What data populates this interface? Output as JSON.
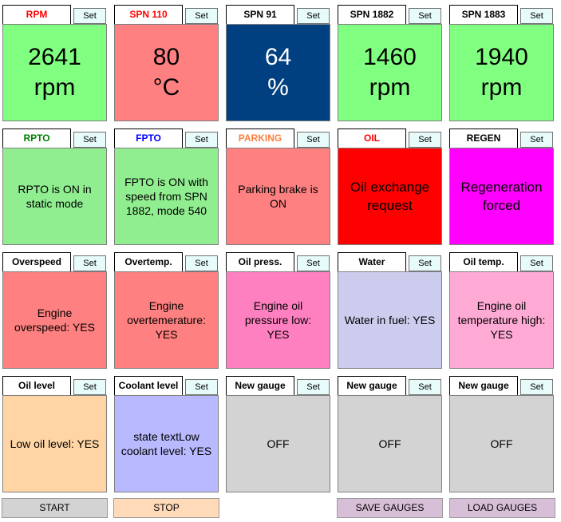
{
  "gauges": [
    {
      "title": "RPM",
      "title_color": "#ff0000",
      "set_label": "Set",
      "value": "2641\nrpm",
      "bg": "#80ff80",
      "fg": "#000000",
      "kind": "numeric"
    },
    {
      "title": "SPN 110",
      "title_color": "#ff0000",
      "set_label": "Set",
      "value": "80\n°C",
      "bg": "#ff8080",
      "fg": "#000000",
      "kind": "numeric"
    },
    {
      "title": "SPN 91",
      "title_color": "#000000",
      "set_label": "Set",
      "value": "64\n%",
      "bg": "#004080",
      "fg": "#ffffff",
      "kind": "numeric"
    },
    {
      "title": "SPN 1882",
      "title_color": "#000000",
      "set_label": "Set",
      "value": "1460\nrpm",
      "bg": "#80ff80",
      "fg": "#000000",
      "kind": "numeric"
    },
    {
      "title": "SPN 1883",
      "title_color": "#000000",
      "set_label": "Set",
      "value": "1940\nrpm",
      "bg": "#80ff80",
      "fg": "#000000",
      "kind": "numeric"
    },
    {
      "title": "RPTO",
      "title_color": "#008000",
      "set_label": "Set",
      "value": "RPTO is ON in\nstatic mode",
      "bg": "#90ee90",
      "fg": "#000000",
      "kind": "text"
    },
    {
      "title": "FPTO",
      "title_color": "#0000ff",
      "set_label": "Set",
      "value": "FPTO is ON with\nspeed from SPN\n1882, mode 540",
      "bg": "#90ee90",
      "fg": "#000000",
      "kind": "text"
    },
    {
      "title": "PARKING",
      "title_color": "#ff8040",
      "set_label": "Set",
      "value": "Parking brake is\nON",
      "bg": "#ff8080",
      "fg": "#000000",
      "kind": "text"
    },
    {
      "title": "OIL",
      "title_color": "#ff0000",
      "set_label": "Set",
      "value": "Oil exchange\nrequest",
      "bg": "#ff0000",
      "fg": "#000000",
      "kind": "big"
    },
    {
      "title": "REGEN",
      "title_color": "#000000",
      "set_label": "Set",
      "value": "Regeneration\nforced",
      "bg": "#ff00ff",
      "fg": "#000000",
      "kind": "big"
    },
    {
      "title": "Overspeed",
      "title_color": "#000000",
      "set_label": "Set",
      "value": "Engine\noverspeed: YES",
      "bg": "#ff8080",
      "fg": "#000000",
      "kind": "text"
    },
    {
      "title": "Overtemp.",
      "title_color": "#000000",
      "set_label": "Set",
      "value": "Engine\novertemerature:\nYES",
      "bg": "#ff8080",
      "fg": "#000000",
      "kind": "text"
    },
    {
      "title": "Oil press.",
      "title_color": "#000000",
      "set_label": "Set",
      "value": "Engine oil\npressure low:\nYES",
      "bg": "#ff80c0",
      "fg": "#000000",
      "kind": "text"
    },
    {
      "title": "Water",
      "title_color": "#000000",
      "set_label": "Set",
      "value": "Water in fuel: YES",
      "bg": "#ccccee",
      "fg": "#000000",
      "kind": "text"
    },
    {
      "title": "Oil temp.",
      "title_color": "#000000",
      "set_label": "Set",
      "value": "Engine oil\ntemperature high:\nYES",
      "bg": "#ffaad5",
      "fg": "#000000",
      "kind": "text"
    },
    {
      "title": "Oil level",
      "title_color": "#000000",
      "set_label": "Set",
      "value": "Low oil level: YES",
      "bg": "#ffd5a5",
      "fg": "#000000",
      "kind": "text"
    },
    {
      "title": "Coolant level",
      "title_color": "#000000",
      "set_label": "Set",
      "value": "state textLow\ncoolant level: YES",
      "bg": "#b9b9ff",
      "fg": "#000000",
      "kind": "text"
    },
    {
      "title": "New gauge",
      "title_color": "#000000",
      "set_label": "Set",
      "value": "OFF",
      "bg": "#d3d3d3",
      "fg": "#000000",
      "kind": "text"
    },
    {
      "title": "New gauge",
      "title_color": "#000000",
      "set_label": "Set",
      "value": "OFF",
      "bg": "#d3d3d3",
      "fg": "#000000",
      "kind": "text"
    },
    {
      "title": "New gauge",
      "title_color": "#000000",
      "set_label": "Set",
      "value": "OFF",
      "bg": "#d3d3d3",
      "fg": "#000000",
      "kind": "text"
    }
  ],
  "buttons": {
    "start": {
      "label": "START",
      "bg": "#d3d3d3"
    },
    "stop": {
      "label": "STOP",
      "bg": "#ffdab9"
    },
    "save": {
      "label": "SAVE GAUGES",
      "bg": "#d8bfd8"
    },
    "load": {
      "label": "LOAD GAUGES",
      "bg": "#d8bfd8"
    }
  }
}
